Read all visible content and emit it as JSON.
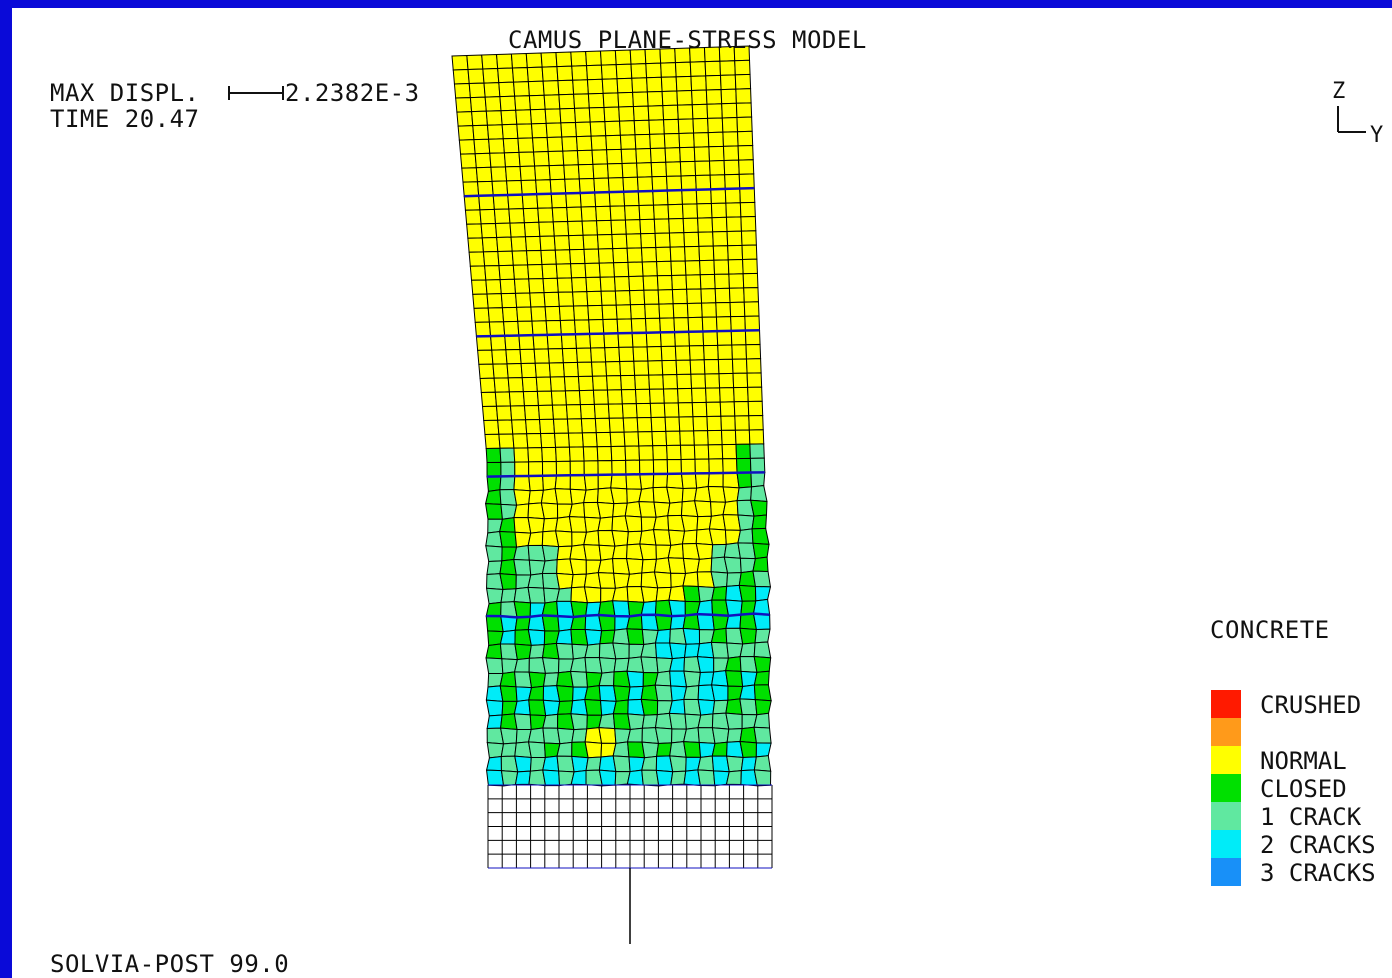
{
  "title": "CAMUS PLANE-STRESS MODEL",
  "max_displ_label": "MAX DISPL.",
  "max_displ_value": "2.2382E-3",
  "time_label": "TIME 20.47",
  "footer": "SOLVIA-POST 99.0",
  "axes": {
    "vertical": "Z",
    "horizontal": "Y"
  },
  "legend": {
    "title": "CONCRETE",
    "items": [
      {
        "label": "CRUSHED",
        "color": "#ff1a00"
      },
      {
        "label": "",
        "color": "#ff9a1a"
      },
      {
        "label": "NORMAL",
        "color": "#ffff00"
      },
      {
        "label": "CLOSED",
        "color": "#00e000"
      },
      {
        "label": "1 CRACK",
        "color": "#60e8a0"
      },
      {
        "label": "2 CRACKS",
        "color": "#00ecf8"
      },
      {
        "label": "3 CRACKS",
        "color": "#1890f8"
      }
    ]
  },
  "colors": {
    "background": "#0a0ad8",
    "canvas": "#ffffff",
    "mesh_line": "#000000",
    "rebar_line": "#1010c0"
  }
}
